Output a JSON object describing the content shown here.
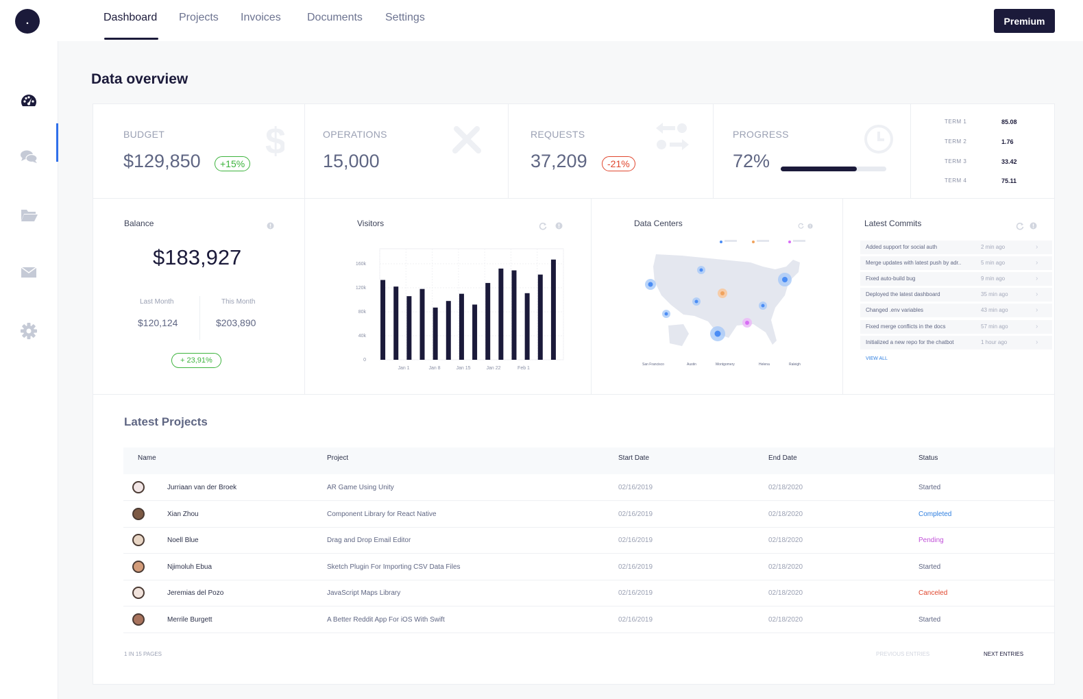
{
  "logo": ".",
  "nav": {
    "tabs": [
      {
        "label": "Dashboard",
        "active": true
      },
      {
        "label": "Projects"
      },
      {
        "label": "Invoices"
      },
      {
        "label": "Documents"
      },
      {
        "label": "Settings"
      }
    ],
    "premium_label": "Premium"
  },
  "sidebar": {
    "icons": [
      "dashboard-gauge-icon",
      "chat-icon",
      "folder-icon",
      "mail-icon",
      "settings-gear-icon"
    ]
  },
  "page_title": "Data overview",
  "stats": {
    "budget": {
      "label": "BUDGET",
      "value": "$129,850",
      "change": "+15%"
    },
    "operations": {
      "label": "OPERATIONS",
      "value": "15,000"
    },
    "requests": {
      "label": "REQUESTS",
      "value": "37,209",
      "change": "-21%"
    },
    "progress": {
      "label": "PROGRESS",
      "value": "72%",
      "fraction": 0.72
    },
    "terms": [
      {
        "label": "TERM 1",
        "value": "85.08"
      },
      {
        "label": "TERM 2",
        "value": "1.76"
      },
      {
        "label": "TERM 3",
        "value": "33.42"
      },
      {
        "label": "TERM 4",
        "value": "75.11"
      }
    ]
  },
  "balance": {
    "title": "Balance",
    "value": "$183,927",
    "last_month_label": "Last Month",
    "last_month_value": "$120,124",
    "this_month_label": "This Month",
    "this_month_value": "$203,890",
    "change": "+ 23,91%"
  },
  "visitors": {
    "title": "Visitors"
  },
  "chart_data": {
    "type": "bar",
    "x_tick_labels": [
      "Jan 1",
      "Jan 8",
      "Jan 15",
      "Jan 22",
      "Feb 1"
    ],
    "y_tick_labels": [
      "0",
      "40k",
      "80k",
      "120k",
      "160k"
    ],
    "ylim": [
      0,
      185000
    ],
    "values": [
      133000,
      122000,
      106000,
      118000,
      87000,
      98000,
      110000,
      92000,
      128000,
      152000,
      149000,
      111000,
      142000,
      167000
    ],
    "bar_color": "#1b1a3a"
  },
  "data_centers": {
    "title": "Data Centers",
    "cities": [
      "San Francisco",
      "Austin",
      "Montgomery",
      "Helena",
      "Raleigh"
    ]
  },
  "commits": {
    "title": "Latest Commits",
    "items": [
      {
        "text": "Added support for social auth",
        "time": "2 min ago"
      },
      {
        "text": "Merge updates with latest push by adr..",
        "time": "5 min ago"
      },
      {
        "text": "Fixed auto-build bug",
        "time": "9 min ago"
      },
      {
        "text": "Deployed the latest dashboard",
        "time": "35 min ago"
      },
      {
        "text": "Changed .env variables",
        "time": "43 min ago"
      },
      {
        "text": "Fixed merge conflicts in the docs",
        "time": "57 min ago"
      },
      {
        "text": "Initialized a new repo for the chatbot",
        "time": "1 hour ago"
      }
    ],
    "view_all": "VIEW ALL"
  },
  "projects": {
    "title": "Latest Projects",
    "columns": [
      "Name",
      "Project",
      "Start Date",
      "End Date",
      "Status"
    ],
    "rows": [
      {
        "name": "Jurriaan van der Broek",
        "project": "AR Game Using Unity",
        "start": "02/16/2019",
        "end": "02/18/2020",
        "status": "Started",
        "status_color": "#5f6683"
      },
      {
        "name": "Xian Zhou",
        "project": "Component Library for React Native",
        "start": "02/16/2019",
        "end": "02/18/2020",
        "status": "Completed",
        "status_color": "#2f7fe0"
      },
      {
        "name": "Noell Blue",
        "project": "Drag and Drop Email Editor",
        "start": "02/16/2019",
        "end": "02/18/2020",
        "status": "Pending",
        "status_color": "#c04fd8"
      },
      {
        "name": "Njimoluh Ebua",
        "project": "Sketch Plugin For Importing CSV Data Files",
        "start": "02/16/2019",
        "end": "02/18/2020",
        "status": "Started",
        "status_color": "#5f6683"
      },
      {
        "name": "Jeremias del Pozo",
        "project": "JavaScript Maps Library",
        "start": "02/16/2019",
        "end": "02/18/2020",
        "status": "Canceled",
        "status_color": "#e0452c"
      },
      {
        "name": "Merrile Burgett",
        "project": "A Better Reddit App For iOS With Swift",
        "start": "02/16/2019",
        "end": "02/18/2020",
        "status": "Started",
        "status_color": "#5f6683"
      }
    ],
    "pager": {
      "info": "1 IN 15 PAGES",
      "prev": "PREVIOUS ENTRIES",
      "next": "NEXT ENTRIES"
    }
  }
}
